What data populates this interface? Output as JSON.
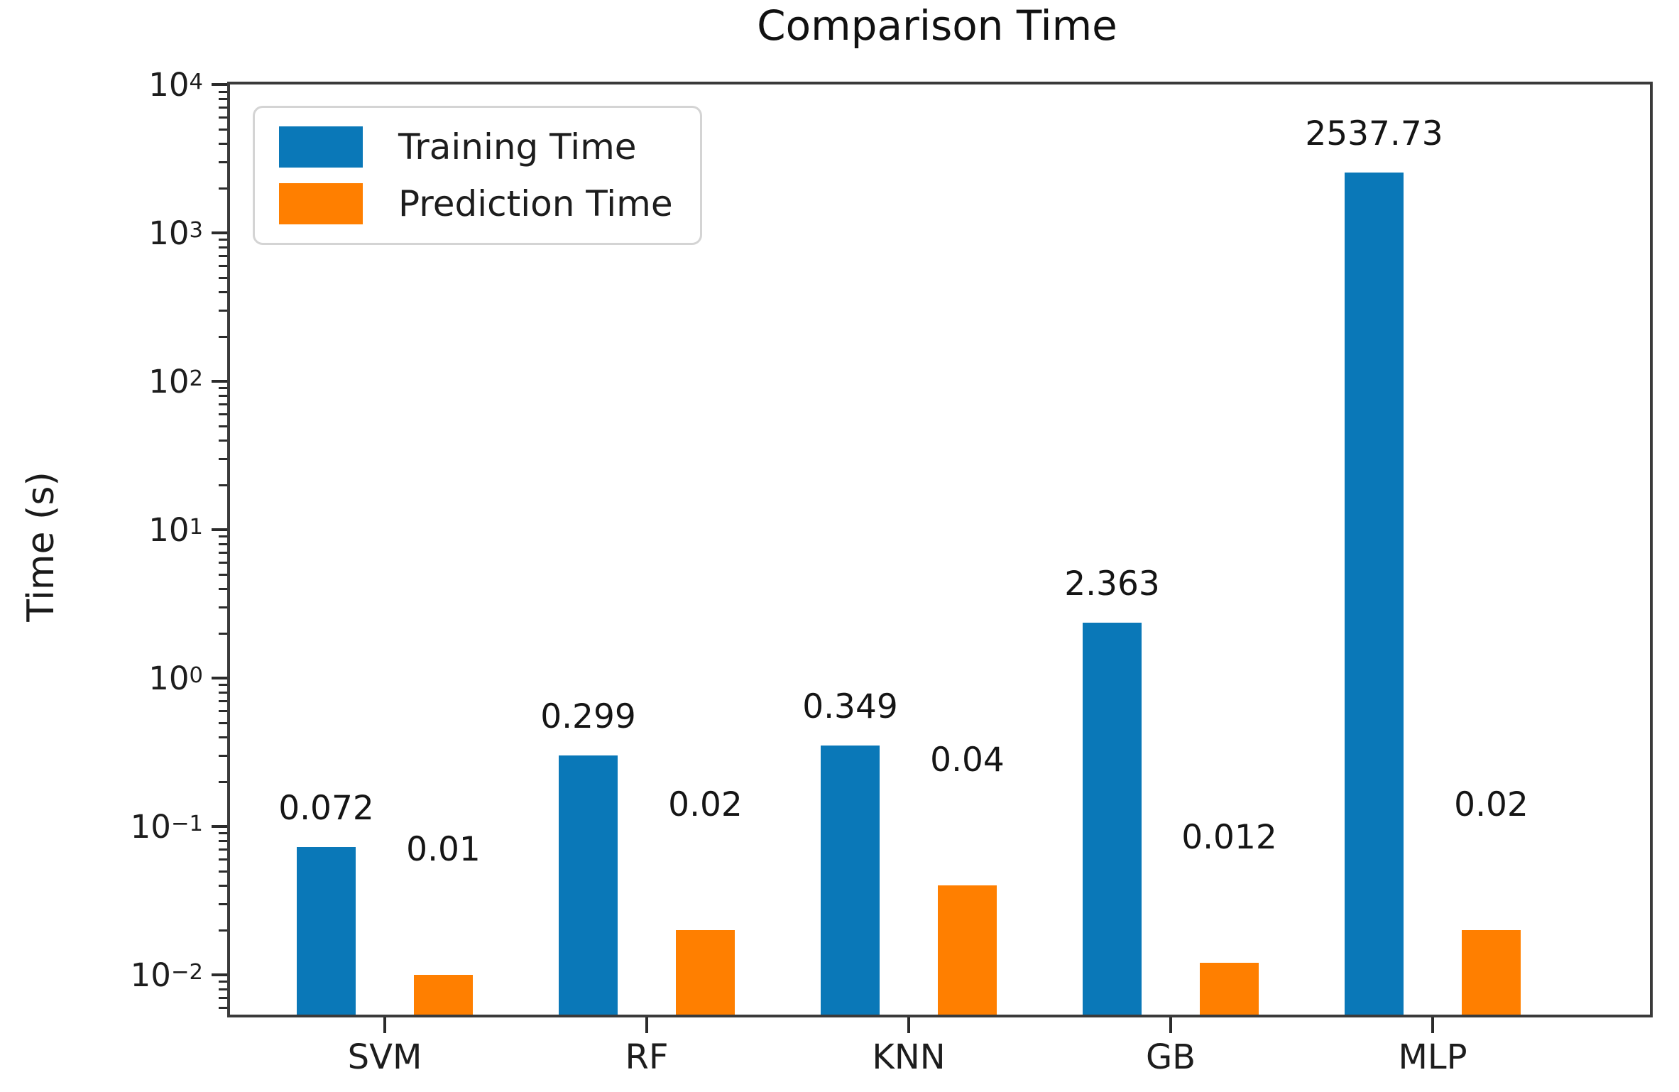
{
  "title": "Comparison Time",
  "ylabel": "Time (s)",
  "legend": {
    "items": [
      {
        "label": "Training Time",
        "color": "#0a78b8"
      },
      {
        "label": "Prediction Time",
        "color": "#ff7f00"
      }
    ]
  },
  "chart_data": {
    "type": "bar",
    "title": "Comparison Time",
    "xlabel": "",
    "ylabel": "Time (s)",
    "yscale": "log",
    "ylim": [
      0.0054,
      10000
    ],
    "ylog_range": [
      -2.27,
      4
    ],
    "grid": false,
    "legend_position": "upper left",
    "categories": [
      "SVM",
      "RF",
      "KNN",
      "GB",
      "MLP"
    ],
    "y_tick_exponents": [
      4,
      3,
      2,
      1,
      0,
      -1,
      -2
    ],
    "series": [
      {
        "name": "Training Time",
        "color": "#0a78b8",
        "values": [
          0.072,
          0.299,
          0.349,
          2.363,
          2537.73
        ],
        "labels": [
          "0.072",
          "0.299",
          "0.349",
          "2.363",
          "2537.73"
        ]
      },
      {
        "name": "Prediction Time",
        "color": "#ff7f00",
        "values": [
          0.01,
          0.02,
          0.04,
          0.012,
          0.02
        ],
        "labels": [
          "0.01",
          "0.02",
          "0.04",
          "0.012",
          "0.02"
        ]
      }
    ]
  }
}
